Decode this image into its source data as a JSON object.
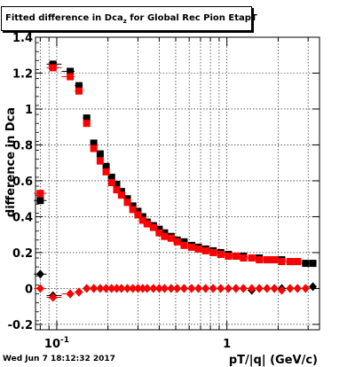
{
  "title": {
    "main": "Fitted difference in Dca",
    "subscript": "z",
    "suffix": " for Global Rec Pion EtapT"
  },
  "footer": {
    "timestamp": "Wed Jun  7 18:12:32 2017"
  },
  "chart_data": {
    "type": "scatter",
    "title": "Fitted difference in Dca_z for Global Rec Pion EtapT",
    "xlabel": "pT/|q| (GeV/c)",
    "ylabel": "difference in Dca",
    "xscale": "log",
    "xlim": [
      0.075,
      3.5
    ],
    "ylim": [
      -0.23,
      1.4
    ],
    "grid": true,
    "x_ticks": [
      {
        "value": 0.1,
        "label": "10^-1"
      },
      {
        "value": 1,
        "label": "1"
      }
    ],
    "y_ticks": [
      -0.2,
      0,
      0.2,
      0.4,
      0.6,
      0.8,
      1,
      1.2,
      1.4
    ],
    "y_tick_labels": [
      "-0.2",
      "0",
      "0.2",
      "0.4",
      "0.6",
      "0.8",
      "1",
      "1.2",
      "1.4"
    ],
    "series": [
      {
        "color": "#000000",
        "marker": "square",
        "x": [
          0.08,
          0.095,
          0.12,
          0.135,
          0.15,
          0.165,
          0.18,
          0.195,
          0.21,
          0.225,
          0.24,
          0.26,
          0.28,
          0.3,
          0.32,
          0.34,
          0.37,
          0.4,
          0.43,
          0.47,
          0.51,
          0.56,
          0.62,
          0.68,
          0.75,
          0.83,
          0.92,
          1.02,
          1.13,
          1.25,
          1.4,
          1.55,
          1.72,
          1.9,
          2.1,
          2.35,
          2.6,
          2.9,
          3.2
        ],
        "y": [
          0.49,
          1.25,
          1.21,
          1.13,
          0.95,
          0.81,
          0.75,
          0.68,
          0.62,
          0.58,
          0.54,
          0.5,
          0.46,
          0.43,
          0.4,
          0.37,
          0.35,
          0.33,
          0.31,
          0.29,
          0.27,
          0.26,
          0.24,
          0.23,
          0.22,
          0.21,
          0.2,
          0.19,
          0.18,
          0.18,
          0.17,
          0.17,
          0.16,
          0.16,
          0.16,
          0.15,
          0.15,
          0.14,
          0.14
        ]
      },
      {
        "color": "#ff0000",
        "marker": "square",
        "x": [
          0.08,
          0.095,
          0.12,
          0.135,
          0.15,
          0.165,
          0.18,
          0.195,
          0.21,
          0.225,
          0.24,
          0.26,
          0.28,
          0.3,
          0.32,
          0.34,
          0.37,
          0.4,
          0.43,
          0.47,
          0.51,
          0.56,
          0.62,
          0.68,
          0.75,
          0.83,
          0.92,
          1.02,
          1.13,
          1.25,
          1.4,
          1.55,
          1.72,
          1.9,
          2.1,
          2.35,
          2.6
        ],
        "y": [
          0.53,
          1.23,
          1.18,
          1.1,
          0.92,
          0.78,
          0.71,
          0.65,
          0.59,
          0.55,
          0.52,
          0.48,
          0.44,
          0.41,
          0.38,
          0.36,
          0.34,
          0.31,
          0.29,
          0.28,
          0.26,
          0.24,
          0.23,
          0.22,
          0.21,
          0.2,
          0.19,
          0.18,
          0.18,
          0.17,
          0.17,
          0.16,
          0.16,
          0.16,
          0.15,
          0.15,
          0.15
        ]
      },
      {
        "color": "#000000",
        "marker": "diamond",
        "x": [
          0.08,
          0.095,
          0.12,
          0.135,
          0.15,
          0.165,
          0.18,
          0.195,
          0.21,
          0.225,
          0.24,
          0.26,
          0.28,
          0.3,
          0.32,
          0.34,
          0.37,
          0.4,
          0.43,
          0.47,
          0.51,
          0.56,
          0.62,
          0.68,
          0.75,
          0.83,
          0.92,
          1.02,
          1.13,
          1.25,
          1.4,
          1.55,
          1.72,
          1.9,
          2.1,
          2.35,
          2.6,
          2.9,
          3.2
        ],
        "y": [
          0.08,
          -0.04,
          -0.03,
          -0.02,
          0.0,
          0.0,
          0.0,
          0.0,
          0.0,
          0.0,
          0.0,
          0.0,
          0.0,
          0.0,
          0.0,
          0.0,
          0.0,
          0.0,
          0.0,
          0.0,
          0.0,
          0.0,
          0.0,
          0.0,
          0.0,
          0.0,
          0.0,
          0.0,
          0.0,
          0.0,
          -0.01,
          0.0,
          0.0,
          0.0,
          0.0,
          0.0,
          0.0,
          0.0,
          0.01
        ]
      },
      {
        "color": "#ff0000",
        "marker": "diamond",
        "x": [
          0.08,
          0.095,
          0.12,
          0.135,
          0.15,
          0.165,
          0.18,
          0.195,
          0.21,
          0.225,
          0.24,
          0.26,
          0.28,
          0.3,
          0.32,
          0.34,
          0.37,
          0.4,
          0.43,
          0.47,
          0.51,
          0.56,
          0.62,
          0.68,
          0.75,
          0.83,
          0.92,
          1.02,
          1.13,
          1.25,
          1.4,
          1.55,
          1.72,
          1.9,
          2.1,
          2.35,
          2.6,
          2.9
        ],
        "y": [
          0.0,
          -0.05,
          -0.03,
          -0.02,
          0.0,
          0.0,
          0.0,
          0.0,
          0.0,
          0.0,
          0.0,
          0.0,
          0.0,
          0.0,
          0.0,
          0.0,
          0.0,
          0.0,
          0.0,
          0.0,
          0.0,
          0.0,
          0.0,
          0.0,
          0.0,
          0.0,
          0.0,
          0.0,
          0.0,
          0.0,
          0.0,
          0.0,
          0.0,
          0.0,
          -0.01,
          0.0,
          0.0,
          0.0
        ]
      }
    ]
  }
}
